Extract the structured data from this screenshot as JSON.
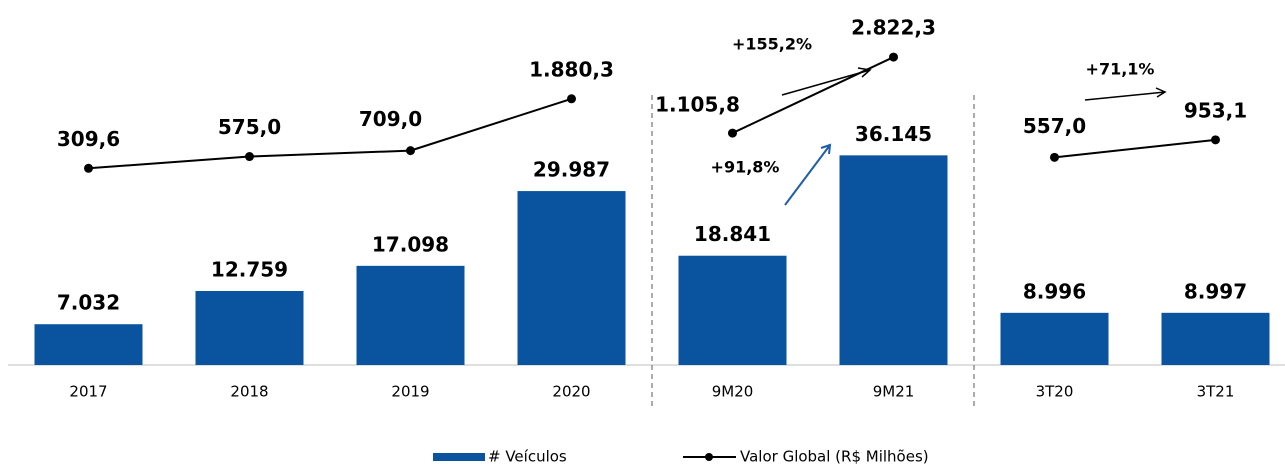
{
  "chart_data": {
    "type": "bar",
    "categories": [
      "2017",
      "2018",
      "2019",
      "2020",
      "9M20",
      "9M21",
      "3T20",
      "3T21"
    ],
    "series": [
      {
        "name": "# Veículos",
        "color": "#0a539e",
        "values": [
          7032,
          12759,
          17098,
          29987,
          18841,
          36145,
          8996,
          8997
        ],
        "value_labels": [
          "7.032",
          "12.759",
          "17.098",
          "29.987",
          "18.841",
          "36.145",
          "8.996",
          "8.997"
        ]
      },
      {
        "name": "Valor Global (R$ Milhões)",
        "color": "#000000",
        "type": "line",
        "axis": "y2",
        "values": [
          309.6,
          575.0,
          709.0,
          1880.3,
          1105.8,
          2822.3,
          557.0,
          953.1
        ],
        "value_labels": [
          "309,6",
          "575,0",
          "709,0",
          "1.880,3",
          "1.105,8",
          "2.822,3",
          "557,0",
          "953,1"
        ]
      }
    ],
    "ylim": [
      0,
      40000
    ],
    "y2lim": [
      0,
      4000
    ],
    "dividers_after": [
      3,
      5
    ],
    "annotations": [
      "+155,2%",
      "+91,8%",
      "+71,1%"
    ],
    "legend": "bottom"
  }
}
